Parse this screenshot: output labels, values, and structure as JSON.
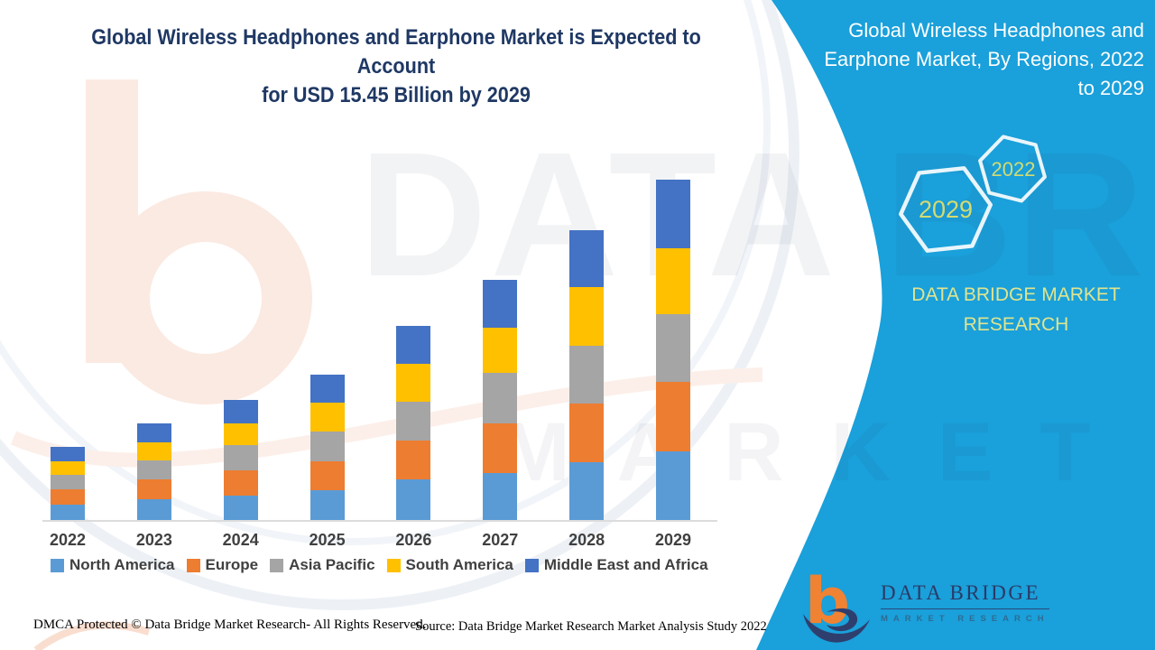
{
  "chart_title": {
    "line1": "Global Wireless Headphones and Earphone Market is Expected to Account",
    "line2": "for USD 15.45 Billion by 2029",
    "color": "#1F3864"
  },
  "side_panel": {
    "bg": "#1AA0DA",
    "title_lines": [
      "Global Wireless Headphones and",
      "Earphone Market, By Regions, 2022",
      "to 2029"
    ],
    "hexagons": [
      {
        "label": "2029"
      },
      {
        "label": "2022"
      }
    ],
    "hex_text_color": "#D5DB70",
    "brand_line1": "DATA BRIDGE MARKET",
    "brand_line2": "RESEARCH",
    "brand_color": "#DFE48F"
  },
  "logo": {
    "main_text": "DATA BRIDGE",
    "sub_text": "MARKET RESEARCH",
    "b_color": "#F08233",
    "swoosh_color": "#2E3F6E",
    "text_color": "#2B3A67"
  },
  "footer": {
    "left": "DMCA Protected © Data Bridge Market Research- All Rights Reserved.",
    "right": "Source: Data Bridge Market Research Market Analysis Study 2022"
  },
  "watermark": {
    "big_text": "DATA BRIDGE",
    "sub_text": "MARKET RESEARCH"
  },
  "chart_data": {
    "type": "bar",
    "stacked": true,
    "title": "Global Wireless Headphones and Earphone Market is Expected to Account for USD 15.45 Billion by 2029",
    "unit": "USD billion (estimated from bar heights; no y-axis shown; 2029 total = 15.45)",
    "categories": [
      "2022",
      "2023",
      "2024",
      "2025",
      "2026",
      "2027",
      "2028",
      "2029"
    ],
    "series": [
      {
        "name": "North America",
        "color": "#5B9BD5",
        "values": [
          0.68,
          0.93,
          1.09,
          1.37,
          1.84,
          2.13,
          2.64,
          3.1
        ]
      },
      {
        "name": "Europe",
        "color": "#ED7D31",
        "values": [
          0.72,
          0.91,
          1.16,
          1.3,
          1.75,
          2.25,
          2.65,
          3.16
        ]
      },
      {
        "name": "Asia Pacific",
        "color": "#A5A5A5",
        "values": [
          0.64,
          0.86,
          1.16,
          1.37,
          1.8,
          2.3,
          2.64,
          3.09
        ]
      },
      {
        "name": "South America",
        "color": "#FFC000",
        "values": [
          0.63,
          0.83,
          0.96,
          1.3,
          1.71,
          2.05,
          2.64,
          3.01
        ]
      },
      {
        "name": "Middle East and Africa",
        "color": "#4472C4",
        "values": [
          0.67,
          0.84,
          1.09,
          1.27,
          1.71,
          2.18,
          2.58,
          3.09
        ]
      }
    ],
    "totals": [
      3.34,
      4.37,
      5.46,
      6.61,
      8.81,
      10.91,
      13.15,
      15.45
    ],
    "ylim": [
      0,
      16
    ],
    "grid": false,
    "y_axis_shown": false,
    "legend_position": "bottom",
    "axis_label_color": "#404040"
  }
}
